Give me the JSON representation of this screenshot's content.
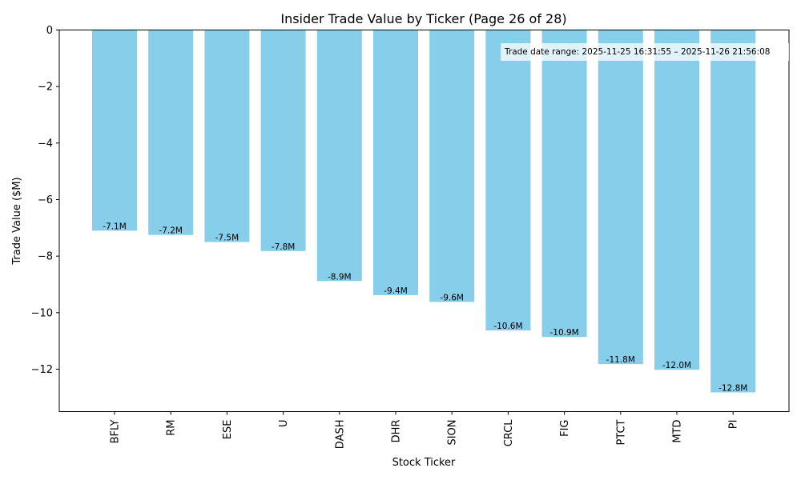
{
  "chart_data": {
    "type": "bar",
    "title": "Insider Trade Value by Ticker (Page 26 of 28)",
    "xlabel": "Stock Ticker",
    "ylabel": "Trade Value ($M)",
    "categories": [
      "BFLY",
      "RM",
      "ESE",
      "U",
      "DASH",
      "DHR",
      "SION",
      "CRCL",
      "FIG",
      "PTCT",
      "MTD",
      "PI"
    ],
    "values": [
      -7.1,
      -7.25,
      -7.5,
      -7.82,
      -8.88,
      -9.38,
      -9.62,
      -10.63,
      -10.86,
      -11.82,
      -12.02,
      -12.82
    ],
    "data_labels": [
      "-7.1M",
      "-7.2M",
      "-7.5M",
      "-7.8M",
      "-8.9M",
      "-9.4M",
      "-9.6M",
      "-10.6M",
      "-10.9M",
      "-11.8M",
      "-12.0M",
      "-12.8M"
    ],
    "ylim": [
      -13.5,
      0
    ],
    "yticks": [
      0,
      -2,
      -4,
      -6,
      -8,
      -10,
      -12
    ],
    "ytick_labels": [
      "0",
      "−2",
      "−4",
      "−6",
      "−8",
      "−10",
      "−12"
    ],
    "bar_color": "#87ceeb",
    "grid": false,
    "annotation": "Trade date range: 2025-11-25 16:31:55 – 2025-11-26 21:56:08",
    "annotation_placement": "top-right"
  }
}
